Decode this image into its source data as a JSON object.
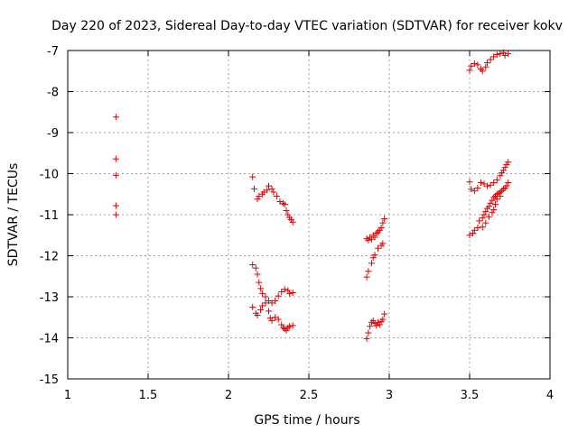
{
  "chart_data": {
    "type": "scatter",
    "title": "Day 220 of 2023, Sidereal Day-to-day VTEC variation (SDTVAR) for receiver kokv",
    "xlabel": "GPS time / hours",
    "ylabel": "SDTVAR / TECUs",
    "xlim": [
      1,
      4
    ],
    "ylim": [
      -15,
      -7
    ],
    "xticks": [
      1,
      1.5,
      2,
      2.5,
      3,
      3.5,
      4
    ],
    "xtick_labels": [
      "1",
      "1.5",
      "2",
      "2.5",
      "3",
      "3.5",
      "4"
    ],
    "yticks": [
      -15,
      -14,
      -13,
      -12,
      -11,
      -10,
      -9,
      -8,
      -7
    ],
    "ytick_labels": [
      "-15",
      "-14",
      "-13",
      "-12",
      "-11",
      "-10",
      "-9",
      "-8",
      "-7"
    ],
    "grid": true,
    "marker": "plus",
    "marker_color": "#e00000",
    "series": [
      {
        "name": "SDTVAR",
        "points": [
          [
            1.3,
            -8.62
          ],
          [
            1.3,
            -9.64
          ],
          [
            1.3,
            -10.04
          ],
          [
            1.3,
            -10.78
          ],
          [
            1.3,
            -11.0
          ],
          [
            2.15,
            -10.08
          ],
          [
            2.16,
            -10.37
          ],
          [
            2.18,
            -10.62
          ],
          [
            2.19,
            -10.55
          ],
          [
            2.21,
            -10.5
          ],
          [
            2.22,
            -10.45
          ],
          [
            2.24,
            -10.4
          ],
          [
            2.25,
            -10.3
          ],
          [
            2.27,
            -10.37
          ],
          [
            2.28,
            -10.45
          ],
          [
            2.3,
            -10.55
          ],
          [
            2.32,
            -10.68
          ],
          [
            2.34,
            -10.72
          ],
          [
            2.35,
            -10.75
          ],
          [
            2.36,
            -10.9
          ],
          [
            2.37,
            -11.0
          ],
          [
            2.38,
            -11.07
          ],
          [
            2.39,
            -11.12
          ],
          [
            2.4,
            -11.18
          ],
          [
            2.15,
            -12.22
          ],
          [
            2.17,
            -12.3
          ],
          [
            2.18,
            -12.45
          ],
          [
            2.19,
            -12.65
          ],
          [
            2.2,
            -12.8
          ],
          [
            2.21,
            -12.92
          ],
          [
            2.23,
            -13.0
          ],
          [
            2.25,
            -13.1
          ],
          [
            2.27,
            -13.15
          ],
          [
            2.29,
            -13.1
          ],
          [
            2.31,
            -12.98
          ],
          [
            2.33,
            -12.88
          ],
          [
            2.35,
            -12.82
          ],
          [
            2.37,
            -12.85
          ],
          [
            2.38,
            -12.92
          ],
          [
            2.4,
            -12.9
          ],
          [
            2.15,
            -13.25
          ],
          [
            2.17,
            -13.4
          ],
          [
            2.18,
            -13.45
          ],
          [
            2.2,
            -13.32
          ],
          [
            2.21,
            -13.22
          ],
          [
            2.23,
            -13.15
          ],
          [
            2.25,
            -13.35
          ],
          [
            2.26,
            -13.52
          ],
          [
            2.27,
            -13.58
          ],
          [
            2.29,
            -13.5
          ],
          [
            2.31,
            -13.55
          ],
          [
            2.33,
            -13.68
          ],
          [
            2.34,
            -13.75
          ],
          [
            2.35,
            -13.78
          ],
          [
            2.36,
            -13.82
          ],
          [
            2.37,
            -13.75
          ],
          [
            2.38,
            -13.72
          ],
          [
            2.4,
            -13.7
          ],
          [
            2.86,
            -11.58
          ],
          [
            2.87,
            -11.62
          ],
          [
            2.88,
            -11.55
          ],
          [
            2.89,
            -11.6
          ],
          [
            2.9,
            -11.5
          ],
          [
            2.91,
            -11.55
          ],
          [
            2.92,
            -11.45
          ],
          [
            2.93,
            -11.42
          ],
          [
            2.94,
            -11.38
          ],
          [
            2.95,
            -11.32
          ],
          [
            2.96,
            -11.2
          ],
          [
            2.97,
            -11.1
          ],
          [
            2.86,
            -12.52
          ],
          [
            2.87,
            -12.38
          ],
          [
            2.89,
            -12.18
          ],
          [
            2.9,
            -12.05
          ],
          [
            2.91,
            -11.98
          ],
          [
            2.93,
            -11.82
          ],
          [
            2.95,
            -11.75
          ],
          [
            2.96,
            -11.7
          ],
          [
            2.86,
            -14.02
          ],
          [
            2.87,
            -13.88
          ],
          [
            2.88,
            -13.72
          ],
          [
            2.89,
            -13.62
          ],
          [
            2.9,
            -13.58
          ],
          [
            2.91,
            -13.65
          ],
          [
            2.92,
            -13.7
          ],
          [
            2.93,
            -13.62
          ],
          [
            2.94,
            -13.68
          ],
          [
            2.95,
            -13.6
          ],
          [
            2.96,
            -13.55
          ],
          [
            2.97,
            -13.42
          ],
          [
            3.5,
            -7.48
          ],
          [
            3.51,
            -7.38
          ],
          [
            3.53,
            -7.32
          ],
          [
            3.55,
            -7.35
          ],
          [
            3.57,
            -7.45
          ],
          [
            3.58,
            -7.5
          ],
          [
            3.6,
            -7.4
          ],
          [
            3.61,
            -7.3
          ],
          [
            3.63,
            -7.22
          ],
          [
            3.65,
            -7.15
          ],
          [
            3.67,
            -7.1
          ],
          [
            3.69,
            -7.08
          ],
          [
            3.71,
            -7.05
          ],
          [
            3.72,
            -7.12
          ],
          [
            3.74,
            -7.08
          ],
          [
            3.5,
            -10.2
          ],
          [
            3.51,
            -10.38
          ],
          [
            3.53,
            -10.42
          ],
          [
            3.55,
            -10.35
          ],
          [
            3.57,
            -10.22
          ],
          [
            3.59,
            -10.25
          ],
          [
            3.61,
            -10.3
          ],
          [
            3.63,
            -10.28
          ],
          [
            3.65,
            -10.22
          ],
          [
            3.67,
            -10.15
          ],
          [
            3.69,
            -10.05
          ],
          [
            3.7,
            -9.98
          ],
          [
            3.71,
            -9.92
          ],
          [
            3.72,
            -9.85
          ],
          [
            3.73,
            -9.78
          ],
          [
            3.74,
            -9.72
          ],
          [
            3.5,
            -11.5
          ],
          [
            3.52,
            -11.45
          ],
          [
            3.53,
            -11.38
          ],
          [
            3.55,
            -11.32
          ],
          [
            3.56,
            -11.15
          ],
          [
            3.58,
            -11.08
          ],
          [
            3.59,
            -11.0
          ],
          [
            3.6,
            -10.92
          ],
          [
            3.61,
            -10.85
          ],
          [
            3.62,
            -10.8
          ],
          [
            3.63,
            -10.72
          ],
          [
            3.64,
            -10.65
          ],
          [
            3.65,
            -10.58
          ],
          [
            3.66,
            -10.55
          ],
          [
            3.67,
            -10.5
          ],
          [
            3.68,
            -10.48
          ],
          [
            3.69,
            -10.45
          ],
          [
            3.7,
            -10.42
          ],
          [
            3.71,
            -10.38
          ],
          [
            3.72,
            -10.35
          ],
          [
            3.73,
            -10.3
          ],
          [
            3.74,
            -10.22
          ],
          [
            3.58,
            -11.3
          ],
          [
            3.6,
            -11.2
          ],
          [
            3.62,
            -11.05
          ],
          [
            3.64,
            -10.95
          ],
          [
            3.65,
            -10.88
          ],
          [
            3.66,
            -10.75
          ],
          [
            3.67,
            -10.62
          ],
          [
            3.69,
            -10.55
          ]
        ]
      }
    ]
  }
}
